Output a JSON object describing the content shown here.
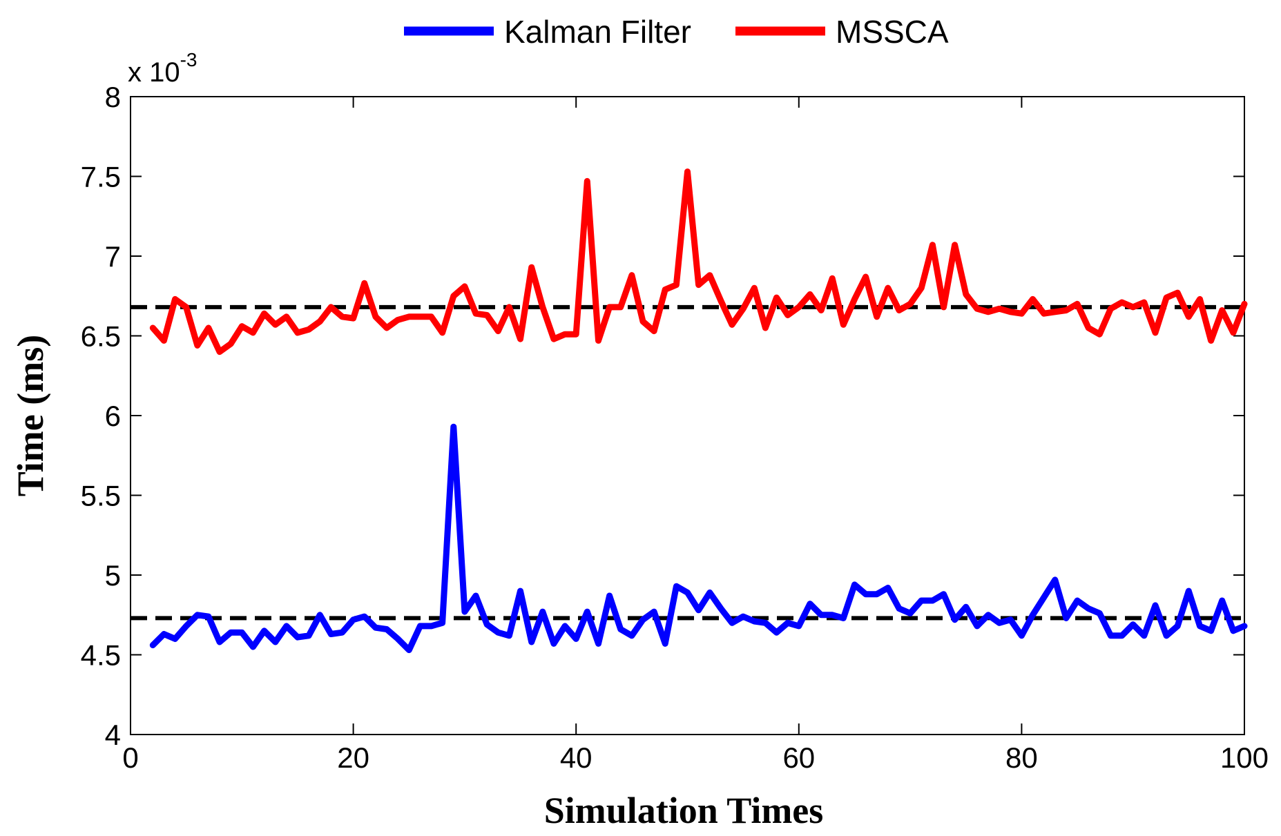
{
  "chart_data": {
    "type": "line",
    "xlabel": "Simulation Times",
    "ylabel": "Time (ms)",
    "y_exponent_base": "x 10",
    "y_exponent_power": "-3",
    "xlim": [
      0,
      100
    ],
    "ylim": [
      4,
      8
    ],
    "y_scale_note": "values ×10^-3",
    "xticks": [
      0,
      20,
      40,
      60,
      80,
      100
    ],
    "yticks": [
      4,
      4.5,
      5,
      5.5,
      6,
      6.5,
      7,
      7.5,
      8
    ],
    "xtick_labels": [
      "0",
      "20",
      "40",
      "60",
      "80",
      "100"
    ],
    "ytick_labels": [
      "4",
      "4.5",
      "5",
      "5.5",
      "6",
      "6.5",
      "7",
      "7.5",
      "8"
    ],
    "legend": {
      "placement": "top-center"
    },
    "grid": false,
    "x": [
      2,
      3,
      4,
      5,
      6,
      7,
      8,
      9,
      10,
      11,
      12,
      13,
      14,
      15,
      16,
      17,
      18,
      19,
      20,
      21,
      22,
      23,
      24,
      25,
      26,
      27,
      28,
      29,
      30,
      31,
      32,
      33,
      34,
      35,
      36,
      37,
      38,
      39,
      40,
      41,
      42,
      43,
      44,
      45,
      46,
      47,
      48,
      49,
      50,
      51,
      52,
      53,
      54,
      55,
      56,
      57,
      58,
      59,
      60,
      61,
      62,
      63,
      64,
      65,
      66,
      67,
      68,
      69,
      70,
      71,
      72,
      73,
      74,
      75,
      76,
      77,
      78,
      79,
      80,
      81,
      82,
      83,
      84,
      85,
      86,
      87,
      88,
      89,
      90,
      91,
      92,
      93,
      94,
      95,
      96,
      97,
      98,
      99,
      100
    ],
    "series": [
      {
        "name": "Kalman Filter",
        "color": "#0000ff",
        "values": [
          4.56,
          4.63,
          4.6,
          4.68,
          4.75,
          4.74,
          4.58,
          4.64,
          4.64,
          4.55,
          4.65,
          4.58,
          4.68,
          4.61,
          4.62,
          4.75,
          4.63,
          4.64,
          4.72,
          4.74,
          4.67,
          4.66,
          4.6,
          4.53,
          4.68,
          4.68,
          4.7,
          5.93,
          4.77,
          4.87,
          4.69,
          4.64,
          4.62,
          4.9,
          4.58,
          4.77,
          4.57,
          4.68,
          4.6,
          4.77,
          4.57,
          4.87,
          4.66,
          4.62,
          4.72,
          4.77,
          4.57,
          4.93,
          4.89,
          4.78,
          4.89,
          4.79,
          4.7,
          4.74,
          4.71,
          4.7,
          4.64,
          4.7,
          4.68,
          4.82,
          4.75,
          4.75,
          4.73,
          4.94,
          4.88,
          4.88,
          4.92,
          4.79,
          4.76,
          4.84,
          4.84,
          4.88,
          4.72,
          4.8,
          4.68,
          4.75,
          4.7,
          4.72,
          4.62,
          4.75,
          4.86,
          4.97,
          4.73,
          4.84,
          4.79,
          4.76,
          4.62,
          4.62,
          4.69,
          4.62,
          4.81,
          4.62,
          4.68,
          4.9,
          4.68,
          4.65,
          4.84,
          4.65,
          4.68
        ]
      },
      {
        "name": "MSSCA",
        "color": "#ff0000",
        "values": [
          6.55,
          6.47,
          6.73,
          6.68,
          6.44,
          6.55,
          6.4,
          6.45,
          6.56,
          6.52,
          6.64,
          6.57,
          6.62,
          6.52,
          6.54,
          6.59,
          6.68,
          6.62,
          6.61,
          6.83,
          6.62,
          6.55,
          6.6,
          6.62,
          6.62,
          6.62,
          6.52,
          6.75,
          6.81,
          6.64,
          6.63,
          6.53,
          6.68,
          6.48,
          6.93,
          6.68,
          6.48,
          6.51,
          6.51,
          7.47,
          6.47,
          6.68,
          6.68,
          6.88,
          6.59,
          6.53,
          6.79,
          6.82,
          7.53,
          6.82,
          6.88,
          6.72,
          6.57,
          6.67,
          6.8,
          6.55,
          6.74,
          6.63,
          6.68,
          6.76,
          6.66,
          6.86,
          6.57,
          6.73,
          6.87,
          6.62,
          6.8,
          6.66,
          6.7,
          6.8,
          7.07,
          6.68,
          7.07,
          6.76,
          6.67,
          6.65,
          6.67,
          6.65,
          6.64,
          6.73,
          6.64,
          6.65,
          6.66,
          6.7,
          6.55,
          6.51,
          6.67,
          6.71,
          6.68,
          6.71,
          6.52,
          6.74,
          6.77,
          6.62,
          6.73,
          6.47,
          6.66,
          6.52,
          6.7
        ]
      }
    ],
    "reference_lines": [
      {
        "y": 4.73,
        "style": "dashed",
        "color": "#000000"
      },
      {
        "y": 6.68,
        "style": "dashed",
        "color": "#000000"
      }
    ]
  }
}
